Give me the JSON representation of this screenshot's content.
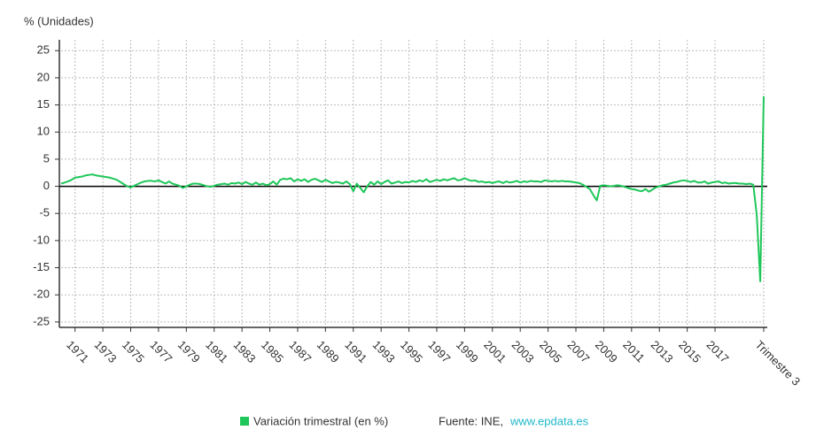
{
  "chart_data": {
    "type": "line",
    "y_axis_label": "% (Unidades)",
    "categories": [
      null,
      null,
      null,
      null,
      "1971",
      null,
      null,
      null,
      null,
      null,
      null,
      null,
      "1973",
      null,
      null,
      null,
      null,
      null,
      null,
      null,
      "1975",
      null,
      null,
      null,
      null,
      null,
      null,
      null,
      "1977",
      null,
      null,
      null,
      null,
      null,
      null,
      null,
      "1979",
      null,
      null,
      null,
      null,
      null,
      null,
      null,
      "1981",
      null,
      null,
      null,
      null,
      null,
      null,
      null,
      "1983",
      null,
      null,
      null,
      null,
      null,
      null,
      null,
      "1985",
      null,
      null,
      null,
      null,
      null,
      null,
      null,
      "1987",
      null,
      null,
      null,
      null,
      null,
      null,
      null,
      "1989",
      null,
      null,
      null,
      null,
      null,
      null,
      null,
      "1991",
      null,
      null,
      null,
      null,
      null,
      null,
      null,
      "1993",
      null,
      null,
      null,
      null,
      null,
      null,
      null,
      "1995",
      null,
      null,
      null,
      null,
      null,
      null,
      null,
      "1997",
      null,
      null,
      null,
      null,
      null,
      null,
      null,
      "1999",
      null,
      null,
      null,
      null,
      null,
      null,
      null,
      "2001",
      null,
      null,
      null,
      null,
      null,
      null,
      null,
      "2003",
      null,
      null,
      null,
      null,
      null,
      null,
      null,
      "2005",
      null,
      null,
      null,
      null,
      null,
      null,
      null,
      "2007",
      null,
      null,
      null,
      null,
      null,
      null,
      null,
      "2009",
      null,
      null,
      null,
      null,
      null,
      null,
      null,
      "2011",
      null,
      null,
      null,
      null,
      null,
      null,
      null,
      "2013",
      null,
      null,
      null,
      null,
      null,
      null,
      null,
      "2015",
      null,
      null,
      null,
      null,
      null,
      null,
      null,
      "2017",
      null,
      null,
      null,
      null,
      null,
      null,
      null,
      null,
      null,
      null,
      null,
      null,
      null,
      "Trimestre 3"
    ],
    "series": [
      {
        "name": "Variación trimestral (en %)",
        "color": "#1fc75a",
        "values": [
          0.5,
          0.7,
          0.9,
          1.2,
          1.6,
          1.7,
          1.8,
          2.0,
          2.1,
          2.2,
          2.0,
          1.9,
          1.8,
          1.7,
          1.6,
          1.4,
          1.2,
          0.8,
          0.4,
          0.0,
          -0.2,
          0.1,
          0.4,
          0.7,
          0.9,
          1.0,
          1.0,
          0.9,
          1.1,
          0.8,
          0.5,
          0.9,
          0.5,
          0.3,
          0.1,
          -0.3,
          0.0,
          0.3,
          0.5,
          0.5,
          0.4,
          0.2,
          0.0,
          -0.1,
          0.1,
          0.3,
          0.4,
          0.5,
          0.3,
          0.6,
          0.5,
          0.7,
          0.4,
          0.8,
          0.5,
          0.3,
          0.7,
          0.3,
          0.5,
          0.2,
          0.4,
          0.9,
          0.3,
          1.2,
          1.4,
          1.3,
          1.5,
          0.9,
          1.3,
          1.0,
          1.3,
          0.8,
          1.2,
          1.4,
          1.1,
          0.8,
          1.2,
          0.9,
          0.6,
          0.8,
          0.7,
          0.5,
          0.9,
          0.4,
          -0.9,
          0.5,
          -0.3,
          -1.1,
          0.0,
          0.8,
          0.3,
          0.9,
          0.4,
          0.8,
          1.1,
          0.5,
          0.7,
          0.9,
          0.6,
          0.8,
          0.7,
          1.0,
          0.8,
          1.1,
          0.9,
          1.3,
          0.8,
          1.0,
          1.2,
          1.0,
          1.3,
          1.1,
          1.3,
          1.5,
          1.1,
          1.2,
          1.5,
          1.2,
          1.0,
          1.1,
          0.8,
          0.9,
          0.7,
          0.8,
          0.6,
          0.8,
          0.9,
          0.6,
          0.9,
          0.7,
          0.8,
          1.0,
          0.7,
          0.9,
          0.8,
          1.0,
          0.9,
          0.9,
          0.8,
          1.1,
          1.0,
          0.9,
          1.0,
          0.9,
          1.0,
          0.9,
          0.9,
          0.8,
          0.7,
          0.6,
          0.3,
          -0.1,
          -0.5,
          -1.6,
          -2.6,
          0.1,
          0.2,
          0.1,
          0.0,
          0.1,
          0.2,
          0.1,
          -0.1,
          -0.3,
          -0.5,
          -0.6,
          -0.8,
          -0.9,
          -0.5,
          -1.0,
          -0.6,
          -0.2,
          0.0,
          0.2,
          0.3,
          0.5,
          0.7,
          0.8,
          1.0,
          1.1,
          1.0,
          0.8,
          1.0,
          0.7,
          0.7,
          0.9,
          0.5,
          0.7,
          0.8,
          0.9,
          0.6,
          0.7,
          0.5,
          0.6,
          0.6,
          0.5,
          0.5,
          0.4,
          0.5,
          0.3,
          -5.3,
          -17.5,
          16.6
        ]
      }
    ],
    "ylim": [
      -26,
      27
    ],
    "yticks": [
      -25,
      -20,
      -15,
      -10,
      -5,
      0,
      5,
      10,
      15,
      20,
      25
    ],
    "grid": true,
    "source_label": "Fuente: INE,",
    "source_link": "www.epdata.es"
  }
}
